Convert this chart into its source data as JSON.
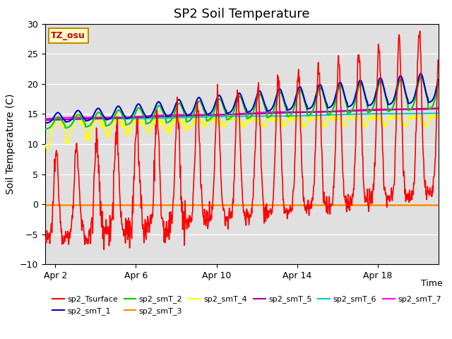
{
  "title": "SP2 Soil Temperature",
  "ylabel": "Soil Temperature (C)",
  "xlabel": "Time",
  "ylim": [
    -10,
    30
  ],
  "xlim_days": [
    0,
    19.5
  ],
  "xtick_labels": [
    "Apr 2",
    "Apr 6",
    "Apr 10",
    "Apr 14",
    "Apr 18"
  ],
  "xtick_positions": [
    0.5,
    4.5,
    8.5,
    12.5,
    16.5
  ],
  "annotation_text": "TZ_osu",
  "annotation_color": "#cc0000",
  "annotation_bg": "#ffffcc",
  "annotation_border": "#cc8800",
  "series_colors": {
    "sp2_Tsurface": "#ff0000",
    "sp2_smT_1": "#0000cc",
    "sp2_smT_2": "#00cc00",
    "sp2_smT_3": "#ff8800",
    "sp2_smT_4": "#ffff00",
    "sp2_smT_5": "#aa00aa",
    "sp2_smT_6": "#00cccc",
    "sp2_smT_7": "#ff00ff"
  },
  "bg_color": "#e0e0e0",
  "fig_bg": "#ffffff",
  "title_fontsize": 13,
  "label_fontsize": 10,
  "tick_fontsize": 9
}
